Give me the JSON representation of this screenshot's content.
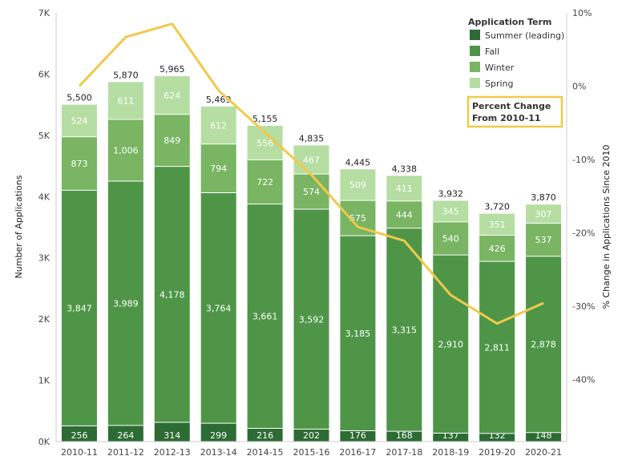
{
  "chart_data": {
    "type": "bar",
    "stacked": true,
    "categories": [
      "2010-11",
      "2011-12",
      "2012-13",
      "2013-14",
      "2014-15",
      "2015-16",
      "2016-17",
      "2017-18",
      "2018-19",
      "2019-20",
      "2020-21"
    ],
    "series": [
      {
        "name": "Summer (leading)",
        "color": "#2d6b34",
        "values": [
          256,
          264,
          314,
          299,
          216,
          202,
          176,
          168,
          137,
          132,
          148
        ]
      },
      {
        "name": "Fall",
        "color": "#4f9548",
        "values": [
          3847,
          3989,
          4178,
          3764,
          3661,
          3592,
          3185,
          3315,
          2910,
          2811,
          2878
        ]
      },
      {
        "name": "Winter",
        "color": "#79b562",
        "values": [
          873,
          1006,
          849,
          794,
          722,
          574,
          575,
          444,
          540,
          426,
          537
        ]
      },
      {
        "name": "Spring",
        "color": "#b6dea3",
        "values": [
          524,
          611,
          624,
          612,
          556,
          467,
          509,
          411,
          345,
          351,
          307
        ]
      }
    ],
    "totals": [
      5500,
      5870,
      5965,
      5469,
      5155,
      4835,
      4445,
      4338,
      3932,
      3720,
      3870
    ],
    "line": {
      "name": "Percent Change From 2010-11",
      "color": "#f1c94a",
      "unit": "%",
      "values": [
        0.0,
        6.7,
        8.5,
        -0.6,
        -6.3,
        -12.1,
        -19.2,
        -21.1,
        -28.5,
        -32.4,
        -29.6
      ]
    },
    "y_left_label": "Number of Applications",
    "y_right_label": "% Change in Applications Since 2010",
    "ylim_left": [
      0,
      7000
    ],
    "y_left_ticks": [
      0,
      1000,
      2000,
      3000,
      4000,
      5000,
      6000,
      7000
    ],
    "y_left_tick_labels": [
      "0K",
      "1K",
      "2K",
      "3K",
      "4K",
      "5K",
      "6K",
      "7K"
    ],
    "ylim_right": [
      -48.5,
      10
    ],
    "y_right_ticks": [
      10,
      0,
      -10,
      -20,
      -30,
      -40
    ],
    "y_right_tick_labels": [
      "10%",
      "0%",
      "-10%",
      "-20%",
      "-30%",
      "-40%"
    ],
    "legend_title": "Application Term",
    "legend_placement": "top-right",
    "callout": [
      "Percent Change",
      "From 2010-11"
    ],
    "callout_color": "#f1c94a",
    "grid": false
  }
}
